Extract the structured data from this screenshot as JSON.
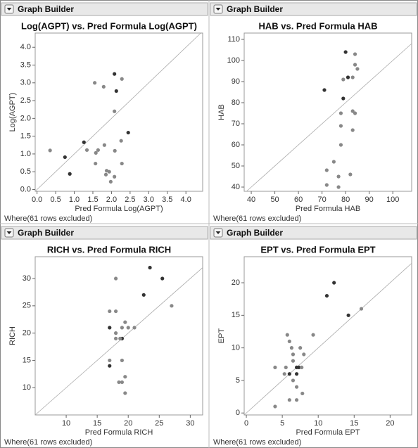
{
  "chart_data": [
    {
      "type": "scatter",
      "header": "Graph Builder",
      "title": "Log(AGPT) vs. Pred Formula Log(AGPT)",
      "xlabel": "Pred Formula Log(AGPT)",
      "ylabel": "Log(AGPT)",
      "note": "Where(61 rows excluded)",
      "x": [
        1.55,
        1.79,
        2.08,
        2.28,
        2.13,
        2.08,
        2.45,
        1.26,
        2.26,
        0.75,
        0.35,
        1.34,
        1.64,
        1.58,
        1.81,
        2.09,
        0.88,
        1.57,
        2.28,
        1.87,
        1.94,
        1.85,
        2.08,
        1.98
      ],
      "values": [
        3.0,
        2.89,
        3.25,
        3.11,
        2.77,
        2.2,
        1.6,
        1.33,
        1.37,
        0.91,
        1.1,
        1.11,
        1.11,
        1.03,
        1.25,
        1.09,
        0.44,
        0.73,
        0.73,
        0.53,
        0.5,
        0.42,
        0.36,
        0.22
      ],
      "colors": [
        "#888888",
        "#888888",
        "#333333",
        "#888888",
        "#333333",
        "#888888",
        "#333333",
        "#333333",
        "#888888",
        "#333333",
        "#888888",
        "#888888",
        "#888888",
        "#888888",
        "#888888",
        "#888888",
        "#333333",
        "#888888",
        "#888888",
        "#888888",
        "#888888",
        "#888888",
        "#888888",
        "#888888"
      ],
      "xlim": [
        -0.05,
        4.45
      ],
      "ylim": [
        -0.05,
        4.4
      ],
      "xticks": [
        {
          "value": 0,
          "label": "0.0"
        },
        0.5,
        {
          "value": 1,
          "label": "1.0"
        },
        1.5,
        {
          "value": 2,
          "label": "2.0"
        },
        2.5,
        {
          "value": 3,
          "label": "3.0"
        },
        3.5,
        {
          "value": 4,
          "label": "4.0"
        }
      ],
      "yticks": [
        {
          "value": 0,
          "label": "0.0"
        },
        0.5,
        {
          "value": 1,
          "label": "1.0"
        },
        1.5,
        {
          "value": 2,
          "label": "2.0"
        },
        2.5,
        {
          "value": 3,
          "label": "3.0"
        },
        3.5,
        {
          "value": 4,
          "label": "4.0"
        }
      ]
    },
    {
      "type": "scatter",
      "header": "Graph Builder",
      "title": "HAB vs. Pred Formula HAB",
      "xlabel": "Pred Formula HAB",
      "ylabel": "HAB",
      "note": "Where(61 rows excluded)",
      "x": [
        80,
        84,
        84,
        85,
        83,
        81,
        79,
        71,
        79,
        78,
        83,
        84,
        78,
        83,
        78,
        75,
        72,
        82,
        77,
        72,
        77
      ],
      "values": [
        104,
        103,
        98,
        96,
        92,
        92,
        91,
        86,
        82,
        75,
        76,
        75,
        69,
        67,
        60,
        52,
        48,
        46,
        45,
        41,
        40
      ],
      "colors": [
        "#333333",
        "#888888",
        "#888888",
        "#888888",
        "#888888",
        "#333333",
        "#888888",
        "#333333",
        "#333333",
        "#888888",
        "#888888",
        "#888888",
        "#888888",
        "#888888",
        "#888888",
        "#888888",
        "#888888",
        "#888888",
        "#888888",
        "#888888",
        "#888888"
      ],
      "xlim": [
        37,
        108
      ],
      "ylim": [
        38,
        113
      ],
      "xticks": [
        40,
        50,
        60,
        70,
        80,
        90,
        100
      ],
      "yticks": [
        40,
        50,
        60,
        70,
        80,
        90,
        100,
        110
      ]
    },
    {
      "type": "scatter",
      "header": "Graph Builder",
      "title": "RICH vs. Pred Formula RICH",
      "xlabel": "Pred Formula RICH",
      "ylabel": "RICH",
      "note": "Where(61 rows excluded)",
      "x": [
        23.5,
        25.5,
        22.5,
        17,
        19,
        17,
        18,
        27,
        17,
        18,
        19.5,
        20,
        21,
        18,
        19,
        18,
        18.7,
        17,
        19,
        18.5,
        19,
        19.5,
        19.5
      ],
      "values": [
        32,
        30,
        27,
        21,
        19,
        14,
        30,
        25,
        24,
        24,
        22,
        21,
        21,
        20,
        21,
        19,
        19,
        15,
        15,
        11,
        11,
        12,
        9
      ],
      "colors": [
        "#333333",
        "#333333",
        "#333333",
        "#333333",
        "#333333",
        "#333333",
        "#888888",
        "#888888",
        "#888888",
        "#888888",
        "#888888",
        "#888888",
        "#888888",
        "#888888",
        "#888888",
        "#888888",
        "#888888",
        "#888888",
        "#888888",
        "#888888",
        "#888888",
        "#888888",
        "#888888"
      ],
      "xlim": [
        5,
        32
      ],
      "ylim": [
        5,
        34
      ],
      "xticks": [
        10,
        15,
        20,
        25,
        30
      ],
      "yticks": [
        10,
        15,
        20,
        25,
        30
      ]
    },
    {
      "type": "scatter",
      "header": "Graph Builder",
      "title": "EPT vs. Pred Formula EPT",
      "xlabel": "Pred Formula EPT",
      "ylabel": "EPT",
      "note": "Where(61 rows excluded)",
      "x": [
        12.2,
        11.2,
        14.2,
        7,
        7.3,
        6,
        7,
        16,
        9.3,
        5.7,
        6,
        6.3,
        7.5,
        6.5,
        8,
        6.5,
        4,
        5.5,
        7.7,
        5.3,
        6.5,
        7,
        7.8,
        6,
        7,
        4
      ],
      "values": [
        20,
        18,
        15,
        7,
        7,
        6,
        6,
        16,
        12,
        12,
        11,
        10,
        10,
        9,
        9,
        8,
        7,
        7,
        7,
        6,
        5,
        4,
        3,
        2,
        2,
        1
      ],
      "colors": [
        "#333333",
        "#333333",
        "#333333",
        "#333333",
        "#333333",
        "#333333",
        "#333333",
        "#888888",
        "#888888",
        "#888888",
        "#888888",
        "#888888",
        "#888888",
        "#888888",
        "#888888",
        "#888888",
        "#888888",
        "#888888",
        "#888888",
        "#888888",
        "#888888",
        "#888888",
        "#888888",
        "#888888",
        "#888888",
        "#888888"
      ],
      "xlim": [
        -0.3,
        23
      ],
      "ylim": [
        -0.3,
        24
      ],
      "xticks": [
        0,
        5,
        10,
        15,
        20
      ],
      "yticks": [
        0,
        5,
        10,
        15,
        20
      ]
    }
  ]
}
